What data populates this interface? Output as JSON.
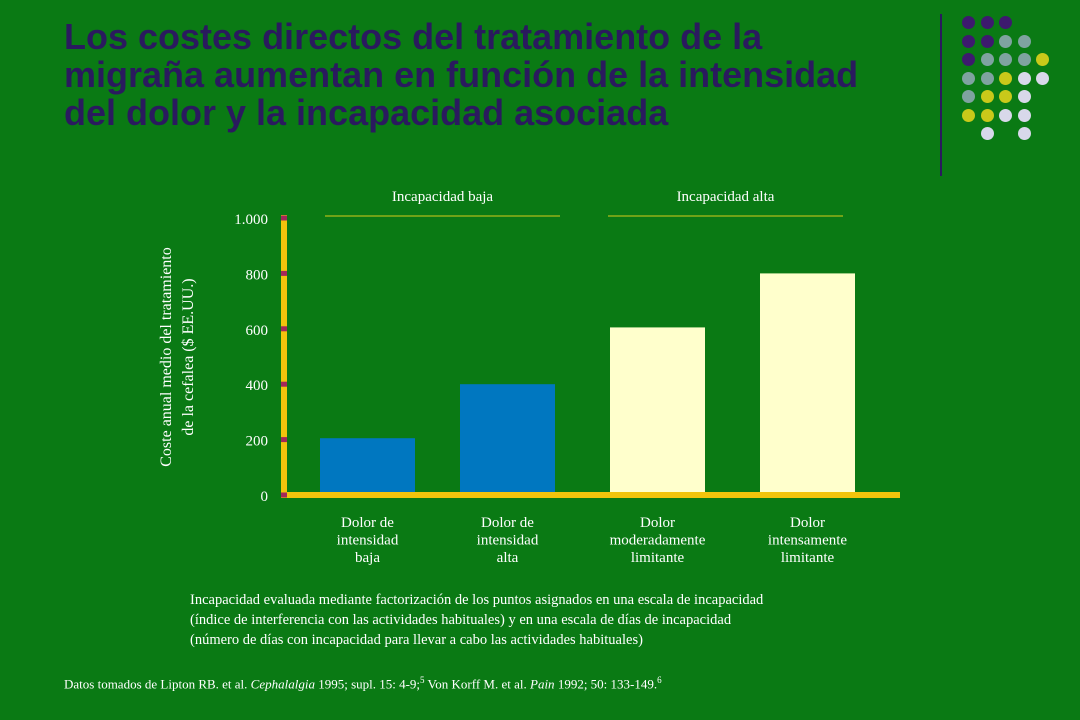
{
  "title_lines": [
    "Los costes directos del tratamiento de la",
    "migraña aumentan en función de la intensidad",
    "del dolor y la incapacidad asociada"
  ],
  "colors": {
    "background": "#0a7a14",
    "title": "#2a1a5e",
    "axis": "#f2c40c",
    "tick": "#a3285a",
    "low_disability_bar": "#0077c0",
    "high_disability_bar": "#ffffcc",
    "group_line": "#d6cc1a"
  },
  "chart_data": {
    "type": "bar",
    "categories": [
      [
        "Dolor de",
        "intensidad",
        "baja"
      ],
      [
        "Dolor de",
        "intensidad",
        "alta"
      ],
      [
        "Dolor",
        "moderadamente",
        "limitante"
      ],
      [
        "Dolor",
        "intensamente",
        "limitante"
      ]
    ],
    "values": [
      205,
      400,
      605,
      800
    ],
    "bar_groups": [
      "Incapacidad baja",
      "Incapacidad baja",
      "Incapacidad alta",
      "Incapacidad alta"
    ],
    "group_labels": [
      "Incapacidad baja",
      "Incapacidad alta"
    ],
    "ylabel": [
      "Coste anual medio del tratamiento",
      "de la cefalea ($ EE.UU.)"
    ],
    "ylim": [
      0,
      1000
    ],
    "yticks": [
      0,
      200,
      400,
      600,
      800,
      1000
    ],
    "ytick_labels": [
      "0",
      "200",
      "400",
      "600",
      "800",
      "1.000"
    ],
    "grid": false
  },
  "note_lines": [
    "Incapacidad evaluada mediante factorización de los puntos asignados en una escala de incapacidad",
    "(índice de interferencia con las actividades habituales) y en una escala de días de incapacidad",
    "(número de días con incapacidad para llevar a cabo las actividades habituales)"
  ],
  "source": {
    "p1": "Datos tomados de Lipton RB. et al. ",
    "journal1": "Cephalalgia",
    "p2": " 1995; supl. 15: 4-9;",
    "ref1": "5",
    "p3": " Von Korff M. et al. ",
    "journal2": "Pain",
    "p4": " 1992; 50: 133-149.",
    "ref2": "6"
  },
  "decor_dots": [
    [
      "#3d1a6e",
      "#3d1a6e",
      "#3d1a6e",
      null,
      null
    ],
    [
      "#3d1a6e",
      "#3d1a6e",
      "#7fa3a0",
      "#7fa3a0",
      null
    ],
    [
      "#3d1a6e",
      "#7fa3a0",
      "#7fa3a0",
      "#7fa3a0",
      "#c9c91a"
    ],
    [
      "#7fa3a0",
      "#7fa3a0",
      "#c9c91a",
      "#d8d8ea",
      "#d8d8ea"
    ],
    [
      "#7fa3a0",
      "#c9c91a",
      "#c9c91a",
      "#d8d8ea",
      null
    ],
    [
      "#c9c91a",
      "#c9c91a",
      "#d8d8ea",
      "#d8d8ea",
      null
    ],
    [
      null,
      "#d8d8ea",
      null,
      "#d8d8ea",
      null
    ]
  ]
}
